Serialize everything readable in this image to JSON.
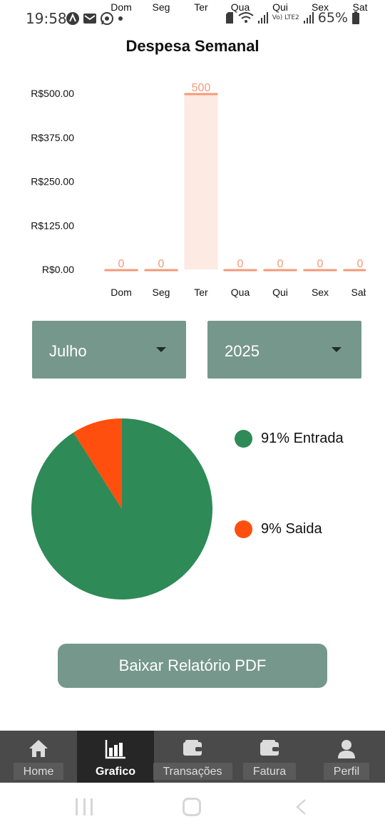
{
  "status_bar": {
    "time": "19:58",
    "battery": "65%",
    "network_label": "Vo) LTE2",
    "icons": [
      "alert-icon",
      "mail-icon",
      "whatsapp-icon",
      "dot-icon",
      "sim-icon",
      "wifi-icon",
      "signal-icon",
      "signal-icon",
      "battery-icon"
    ]
  },
  "overlay_days": [
    "Dom",
    "Seg",
    "Ter",
    "Qua",
    "Qui",
    "Sex",
    "Sat"
  ],
  "chart_data": {
    "type": "bar",
    "title": "Despesa Semanal",
    "categories": [
      "Dom",
      "Seg",
      "Ter",
      "Qua",
      "Qui",
      "Sex",
      "Sab"
    ],
    "values": [
      0,
      0,
      500,
      0,
      0,
      0,
      0
    ],
    "data_labels": [
      "0",
      "0",
      "500",
      "0",
      "0",
      "0",
      "0"
    ],
    "ytick_labels": [
      "R$0.00",
      "R$125.00",
      "R$250.00",
      "R$375.00",
      "R$500.00"
    ],
    "ytick_values": [
      0,
      125,
      250,
      375,
      500
    ],
    "ylim": [
      0,
      500
    ],
    "bar_fill": "#fdeae3",
    "bar_stroke": "#f39a78",
    "label_color": "#f39a78",
    "grid": false
  },
  "filters": {
    "month": "Julho",
    "year": "2025"
  },
  "pie": {
    "slices": [
      {
        "label": "91% Entrada",
        "value": 91,
        "color": "#2e8a56"
      },
      {
        "label": "9% Saida",
        "value": 9,
        "color": "#ff4f0f"
      }
    ]
  },
  "pdf_button_label": "Baixar Relatório PDF",
  "bottom_nav": [
    {
      "label": "Home",
      "icon": "home-icon",
      "active": false
    },
    {
      "label": "Grafico",
      "icon": "bar-chart-icon",
      "active": true
    },
    {
      "label": "Transações",
      "icon": "wallet-icon",
      "active": false
    },
    {
      "label": "Fatura",
      "icon": "wallet-icon",
      "active": false
    },
    {
      "label": "Perfil",
      "icon": "person-icon",
      "active": false
    }
  ],
  "colors": {
    "accent": "#76978c",
    "nav_bg": "#4a4a4a",
    "nav_active_bg": "#262626"
  }
}
